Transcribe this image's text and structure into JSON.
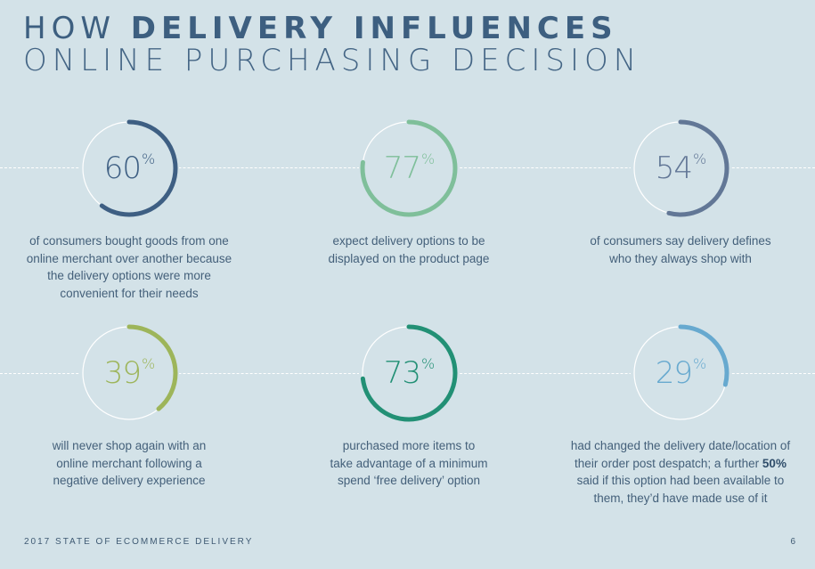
{
  "title": {
    "line1_thin": "HOW ",
    "line1_bold": "DELIVERY INFLUENCES",
    "line2": "ONLINE PURCHASING DECISION"
  },
  "stats": [
    {
      "value": 60,
      "number": "60",
      "unit": "%",
      "color": "#3e5f83",
      "description": [
        "of consumers bought goods from one",
        "online merchant over another because",
        "the delivery options were more",
        "convenient for their needs"
      ]
    },
    {
      "value": 77,
      "number": "77",
      "unit": "%",
      "color": "#7fbf9a",
      "description": [
        "expect delivery options to be",
        "displayed on the product page"
      ]
    },
    {
      "value": 54,
      "number": "54",
      "unit": "%",
      "color": "#627796",
      "description": [
        "of consumers say delivery defines",
        "who they always shop with"
      ]
    },
    {
      "value": 39,
      "number": "39",
      "unit": "%",
      "color": "#9db55a",
      "description": [
        "will never shop again with an",
        "online merchant following a",
        "negative delivery experience"
      ]
    },
    {
      "value": 73,
      "number": "73",
      "unit": "%",
      "color": "#229075",
      "description": [
        "purchased more items to",
        "take advantage of a minimum",
        "spend ‘free delivery’ option"
      ]
    },
    {
      "value": 29,
      "number": "29",
      "unit": "%",
      "color": "#67a9cf",
      "description": [
        "had changed the delivery date/location of",
        "their order post despatch; a further ",
        "said if this option had been available to",
        "them, they’d have made use of it"
      ],
      "highlight": "50%"
    }
  ],
  "footer": {
    "text": "2017 STATE OF ECOMMERCE DELIVERY",
    "page": "6"
  }
}
